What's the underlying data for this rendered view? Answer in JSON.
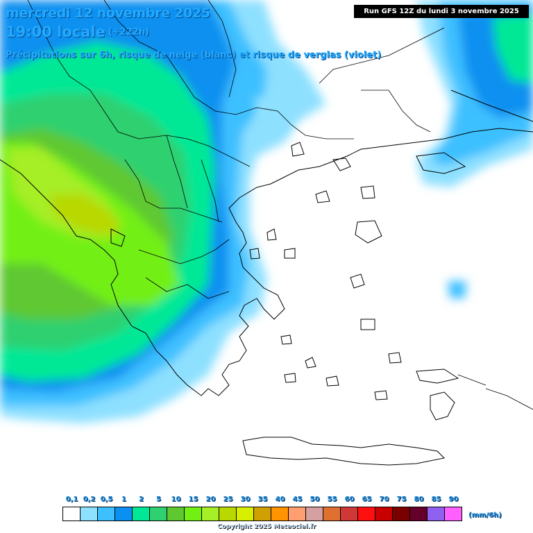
{
  "header": {
    "date_line": "mercredi 12 novembre 2025",
    "time_line": "19:00 locale",
    "lead_time": "(+222h)",
    "subtitle": "Précipitations sur 6h, risque de neige (blanc) et risque de verglas (violet)",
    "run_info": "Run GFS 12Z du lundi 3 novembre 2025"
  },
  "map": {
    "region": "Greece / Balkans",
    "max_precip_value": 2
  },
  "legend": {
    "labels": [
      "0,1",
      "0,2",
      "0,5",
      "1",
      "2",
      "5",
      "10",
      "15",
      "20",
      "25",
      "30",
      "35",
      "40",
      "45",
      "50",
      "55",
      "60",
      "65",
      "70",
      "75",
      "80",
      "85",
      "90"
    ],
    "colors": [
      "#ffffff",
      "#8ee0ff",
      "#3cc0ff",
      "#0a90f0",
      "#00e896",
      "#2ed070",
      "#5ec830",
      "#72f012",
      "#a6ee28",
      "#b8d800",
      "#d8f000",
      "#d0a000",
      "#ff9400",
      "#ff9e70",
      "#d4a0a0",
      "#e07030",
      "#d03838",
      "#ff1010",
      "#c80000",
      "#7a0000",
      "#64002a",
      "#9060f0",
      "#ff60ff"
    ],
    "unit": "(mm/6h)"
  },
  "footer": {
    "copyright": "Copyright 2025 Meteociel.fr"
  }
}
